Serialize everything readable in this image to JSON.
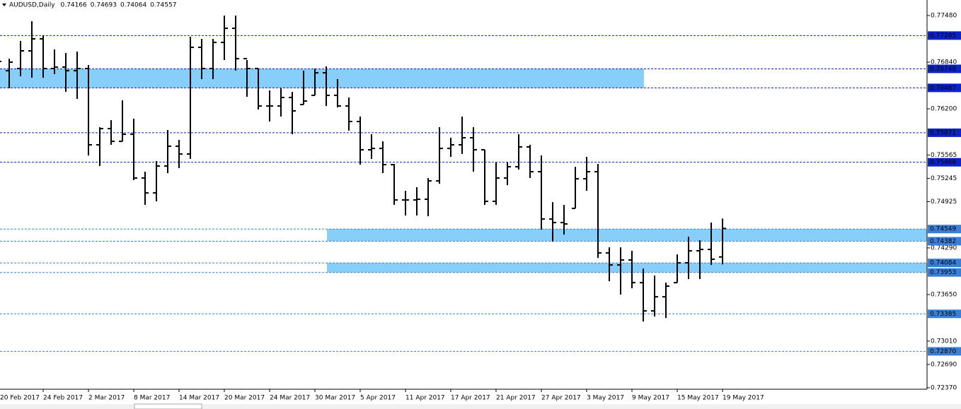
{
  "chart_data": {
    "type": "ohlc",
    "symbol": "AUDUSD,Daily",
    "color": "#000000",
    "categories": [
      "20 Feb 2017",
      null,
      null,
      null,
      "24 Feb 2017",
      null,
      null,
      null,
      "2 Mar 2017",
      null,
      null,
      null,
      "8 Mar 2017",
      null,
      null,
      null,
      "14 Mar 2017",
      null,
      null,
      null,
      "20 Mar 2017",
      null,
      null,
      null,
      "24 Mar 2017",
      null,
      null,
      null,
      "30 Mar 2017",
      null,
      null,
      null,
      "5 Apr 2017",
      null,
      null,
      null,
      "11 Apr 2017",
      null,
      null,
      null,
      "17 Apr 2017",
      null,
      null,
      null,
      "21 Apr 2017",
      null,
      null,
      null,
      "27 Apr 2017",
      null,
      null,
      null,
      "3 May 2017",
      null,
      null,
      null,
      "9 May 2017",
      null,
      null,
      null,
      "15 May 2017",
      null,
      null,
      null,
      "19 May 2017"
    ],
    "open": [
      0.7682,
      0.76723,
      0.76753,
      0.76995,
      0.7716,
      0.76753,
      0.76772,
      0.76723,
      0.76753,
      0.75705,
      0.75928,
      0.75753,
      0.7585,
      0.75249,
      0.75045,
      0.75414,
      0.75686,
      0.75579,
      0.77044,
      0.76753,
      0.77111,
      0.77305,
      0.76888,
      0.76753,
      0.76238,
      0.76238,
      0.76355,
      0.76258,
      0.76384,
      0.76694,
      0.76384,
      0.76238,
      0.76025,
      0.75637,
      0.75656,
      0.75433,
      0.74948,
      0.74948,
      0.74958,
      0.7521,
      0.75656,
      0.75705,
      0.75802,
      0.75637,
      0.74929,
      0.75249,
      0.75404,
      0.75676,
      0.75336,
      0.74686,
      0.74638,
      0.74832,
      0.75239,
      0.75336,
      0.74221,
      0.74056,
      0.74124,
      0.73813,
      0.73425,
      0.73619,
      0.73813,
      0.74085,
      0.7425,
      0.74269,
      0.74166
    ],
    "high": [
      0.76879,
      0.76888,
      0.77131,
      0.77402,
      0.77208,
      0.77014,
      0.76966,
      0.76985,
      0.76801,
      0.75947,
      0.76044,
      0.76316,
      0.76064,
      0.75336,
      0.75482,
      0.75909,
      0.75773,
      0.77189,
      0.7716,
      0.7716,
      0.7748,
      0.7748,
      0.76869,
      0.76753,
      0.76452,
      0.76481,
      0.76432,
      0.76723,
      0.76753,
      0.76782,
      0.76607,
      0.76355,
      0.76093,
      0.7585,
      0.75753,
      0.75443,
      0.75074,
      0.75123,
      0.75249,
      0.75947,
      0.75802,
      0.76093,
      0.75947,
      0.75637,
      0.75462,
      0.75462,
      0.7585,
      0.75705,
      0.75559,
      0.74919,
      0.7488,
      0.75404,
      0.7554,
      0.75443,
      0.74298,
      0.74298,
      0.7425,
      0.74007,
      0.7391,
      0.73813,
      0.74201,
      0.74444,
      0.74395,
      0.74638,
      0.74693
    ],
    "low": [
      0.76801,
      0.76481,
      0.76646,
      0.76626,
      0.76626,
      0.76675,
      0.76432,
      0.76335,
      0.75559,
      0.75414,
      0.75705,
      0.75753,
      0.7522,
      0.7488,
      0.74929,
      0.75317,
      0.75385,
      0.75511,
      0.76607,
      0.76607,
      0.76869,
      0.76723,
      0.76365,
      0.7619,
      0.76025,
      0.76093,
      0.7585,
      0.76258,
      0.76384,
      0.76238,
      0.76219,
      0.75899,
      0.75433,
      0.75511,
      0.75317,
      0.7488,
      0.74735,
      0.74735,
      0.74725,
      0.75171,
      0.7554,
      0.75579,
      0.75336,
      0.7488,
      0.7488,
      0.75152,
      0.75365,
      0.75249,
      0.74541,
      0.74376,
      0.74473,
      0.74832,
      0.75074,
      0.74153,
      0.73833,
      0.73649,
      0.73736,
      0.7328,
      0.73348,
      0.73328,
      0.73813,
      0.73862,
      0.73862,
      0.74056,
      0.74064
    ],
    "close": [
      0.7685,
      0.7684,
      0.76995,
      0.7716,
      0.76753,
      0.76772,
      0.76723,
      0.76753,
      0.75705,
      0.75928,
      0.75753,
      0.7585,
      0.75249,
      0.75045,
      0.75414,
      0.75686,
      0.75579,
      0.77044,
      0.76753,
      0.77111,
      0.77305,
      0.76888,
      0.76753,
      0.76238,
      0.76238,
      0.76355,
      0.76171,
      0.76306,
      0.76694,
      0.76384,
      0.76238,
      0.76025,
      0.75637,
      0.75656,
      0.75433,
      0.74948,
      0.74948,
      0.74958,
      0.7521,
      0.75656,
      0.75705,
      0.75802,
      0.75637,
      0.74929,
      0.75249,
      0.75404,
      0.75676,
      0.75336,
      0.74686,
      0.74638,
      0.74619,
      0.75239,
      0.75336,
      0.74221,
      0.74056,
      0.74124,
      0.73813,
      0.73425,
      0.73619,
      0.73765,
      0.74085,
      0.7425,
      0.74269,
      0.74134,
      0.74557
    ],
    "ylim": [
      0.7235,
      0.777
    ],
    "yticks": [
      {
        "value": 0.7748,
        "label": "0.77480"
      },
      {
        "value": 0.7684,
        "label": "0.76840"
      },
      {
        "value": 0.762,
        "label": "0.76200"
      },
      0.75565,
      0.75245,
      0.74925,
      {
        "value": 0.7429,
        "label": "0.74290"
      },
      {
        "value": 0.7365,
        "label": "0.73650"
      },
      {
        "value": 0.7301,
        "label": "0.73010"
      },
      {
        "value": 0.7269,
        "label": "0.72690"
      },
      {
        "value": 0.7237,
        "label": "0.72370"
      }
    ],
    "levels": [
      {
        "value": 0.77205,
        "color": "#0a22c8"
      },
      {
        "value": 0.76748,
        "color": "#0a22c8"
      },
      {
        "value": 0.76487,
        "color": "#0a22c8"
      },
      {
        "value": 0.75871,
        "color": "#0a22c8"
      },
      {
        "value": 0.75466,
        "color": "#0a22c8"
      },
      {
        "value": 0.74549,
        "color": "#3a7fd6"
      },
      {
        "value": 0.74382,
        "color": "#3a7fd6"
      },
      {
        "value": 0.74084,
        "color": "#3a7fd6"
      },
      {
        "value": 0.73953,
        "color": "#3a7fd6"
      },
      {
        "value": 0.73385,
        "color": "#3a7fd6"
      },
      {
        "value": 0.7287,
        "label": "0.72870",
        "color": "#3a7fd6"
      }
    ],
    "zone_color": "#87cefa"
  }
}
